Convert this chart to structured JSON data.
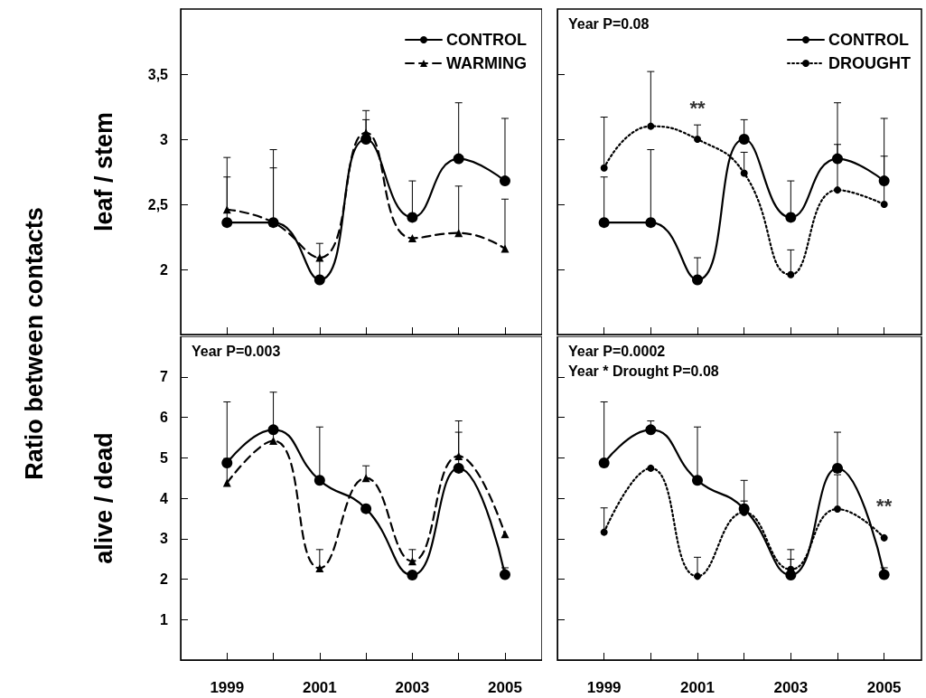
{
  "chart_data": [
    {
      "type": "other",
      "ylabel": "Ratio between contacts"
    },
    {
      "type": "line",
      "ylabel": "leaf / stem",
      "x": [
        1999,
        2000,
        2001,
        2002,
        2003,
        2004,
        2005
      ],
      "xlim": [
        1998,
        2005.8
      ],
      "xticks": [
        1999,
        {
          "value": 2000,
          "label": null
        },
        2001,
        {
          "value": 2002,
          "label": null
        },
        2003,
        {
          "value": 2004,
          "label": null
        },
        2005
      ],
      "ylim": [
        1.5,
        4
      ],
      "yticks": [
        2,
        {
          "value": 2.5,
          "label": "2,5"
        },
        3,
        {
          "value": 3.5,
          "label": "3,5"
        }
      ],
      "tick_labels": "y",
      "legend": "top right",
      "series": [
        {
          "name": "CONTROL",
          "color": "#000000",
          "marker": "circle",
          "line_style": "solid",
          "values": [
            2.36,
            2.36,
            1.92,
            3.0,
            2.4,
            2.85,
            2.68
          ],
          "errors": [
            [
              2.36,
              2.71
            ],
            [
              2.36,
              2.92
            ],
            [
              1.92,
              2.09
            ],
            [
              3.0,
              3.15
            ],
            [
              2.4,
              2.68
            ],
            [
              2.85,
              3.28
            ],
            [
              2.68,
              3.16
            ]
          ]
        },
        {
          "name": "WARMING",
          "color": "#000000",
          "marker": "triangle",
          "line_style": "dashed",
          "values": [
            2.46,
            2.36,
            2.09,
            3.05,
            2.24,
            2.28,
            2.16
          ],
          "errors": [
            [
              2.46,
              2.86
            ],
            [
              2.36,
              2.78
            ],
            [
              2.09,
              2.2
            ],
            [
              3.05,
              3.22
            ],
            null,
            [
              2.28,
              2.64
            ],
            [
              2.16,
              2.54
            ]
          ]
        }
      ]
    },
    {
      "type": "line",
      "x": [
        1999,
        2000,
        2001,
        2002,
        2003,
        2004,
        2005
      ],
      "xlim": [
        1998,
        2005.8
      ],
      "xticks": [
        1999,
        {
          "value": 2000,
          "label": null
        },
        2001,
        {
          "value": 2002,
          "label": null
        },
        2003,
        {
          "value": 2004,
          "label": null
        },
        2005
      ],
      "ylim": [
        1.5,
        4
      ],
      "yticks": [
        2,
        2.5,
        3,
        3.5
      ],
      "tick_labels": false,
      "legend": "top right",
      "annotations": [
        "Year P=0.08",
        {
          "text": "**",
          "x": 2001,
          "y": 3.0
        }
      ],
      "series": [
        {
          "name": "CONTROL",
          "color": "#000000",
          "marker": "circle",
          "line_style": "solid",
          "values": [
            2.36,
            2.36,
            1.92,
            3.0,
            2.4,
            2.85,
            2.68
          ],
          "errors": [
            [
              2.36,
              2.71
            ],
            [
              2.36,
              2.92
            ],
            [
              1.92,
              2.09
            ],
            [
              3.0,
              3.15
            ],
            [
              2.4,
              2.68
            ],
            [
              2.85,
              3.28
            ],
            [
              2.68,
              3.16
            ]
          ]
        },
        {
          "name": "DROUGHT",
          "color": "#000000",
          "marker": "circle",
          "line_style": "dotted",
          "values": [
            2.78,
            3.1,
            3.0,
            2.74,
            1.96,
            2.61,
            2.5
          ],
          "errors": [
            [
              2.78,
              3.17
            ],
            [
              3.1,
              3.52
            ],
            [
              3.0,
              3.11
            ],
            [
              2.74,
              2.9
            ],
            [
              1.96,
              2.15
            ],
            [
              2.61,
              2.96
            ],
            [
              2.5,
              2.87
            ]
          ]
        }
      ]
    },
    {
      "type": "line",
      "ylabel": "alive / dead",
      "x": [
        1999,
        2000,
        2001,
        2002,
        2003,
        2004,
        2005
      ],
      "xlim": [
        1998,
        2005.8
      ],
      "xticks": [
        1999,
        {
          "value": 2000,
          "label": null
        },
        2001,
        {
          "value": 2002,
          "label": null
        },
        2003,
        {
          "value": 2004,
          "label": null
        },
        2005
      ],
      "ylim": [
        0,
        8
      ],
      "yticks": [
        1,
        2,
        3,
        4,
        5,
        6,
        7
      ],
      "annotations": [
        "Year P=0.003"
      ],
      "series": [
        {
          "color": "#000000",
          "marker": "circle",
          "line_style": "solid",
          "values": [
            4.87,
            5.69,
            4.44,
            3.74,
            2.1,
            4.74,
            2.11
          ],
          "errors": [
            [
              4.87,
              6.38
            ],
            [
              5.69,
              6.62
            ],
            [
              4.44,
              5.76
            ],
            null,
            null,
            [
              4.74,
              5.63
            ],
            [
              2.11,
              2.28
            ]
          ]
        },
        {
          "color": "#000000",
          "marker": "triangle",
          "line_style": "dashed",
          "values": [
            4.38,
            5.42,
            2.27,
            4.5,
            2.44,
            5.04,
            3.11
          ],
          "errors": [
            [
              4.38,
              4.98
            ],
            [
              5.42,
              5.78
            ],
            [
              2.27,
              2.73
            ],
            [
              4.5,
              4.8
            ],
            [
              2.44,
              2.73
            ],
            [
              5.04,
              5.91
            ],
            null
          ]
        }
      ]
    },
    {
      "type": "line",
      "x": [
        1999,
        2000,
        2001,
        2002,
        2003,
        2004,
        2005
      ],
      "xlim": [
        1998,
        2005.8
      ],
      "xticks": [
        1999,
        {
          "value": 2000,
          "label": null
        },
        2001,
        {
          "value": 2002,
          "label": null
        },
        2003,
        {
          "value": 2004,
          "label": null
        },
        2005
      ],
      "ylim": [
        0,
        8
      ],
      "yticks": [
        1,
        2,
        3,
        4,
        5,
        6,
        7
      ],
      "tick_labels": "x",
      "annotations": [
        "Year P=0.0002",
        "Year * Drought P=0.08",
        {
          "text": "**",
          "x": 2005,
          "y": 3.02
        }
      ],
      "series": [
        {
          "color": "#000000",
          "marker": "circle",
          "line_style": "solid",
          "values": [
            4.87,
            5.69,
            4.44,
            3.74,
            2.1,
            4.74,
            2.11
          ],
          "errors": [
            [
              4.87,
              6.38
            ],
            [
              5.69,
              5.91
            ],
            [
              4.44,
              5.76
            ],
            [
              3.74,
              3.93
            ],
            [
              2.1,
              2.49
            ],
            [
              4.74,
              5.63
            ],
            [
              2.11,
              2.28
            ]
          ]
        },
        {
          "color": "#000000",
          "marker": "circle",
          "line_style": "dotted",
          "values": [
            3.16,
            4.74,
            2.07,
            3.65,
            2.24,
            3.73,
            3.02
          ],
          "errors": [
            [
              3.16,
              3.76
            ],
            null,
            [
              2.07,
              2.54
            ],
            [
              3.65,
              4.44
            ],
            [
              2.24,
              2.73
            ],
            [
              3.73,
              4.58
            ],
            null
          ]
        }
      ]
    }
  ]
}
